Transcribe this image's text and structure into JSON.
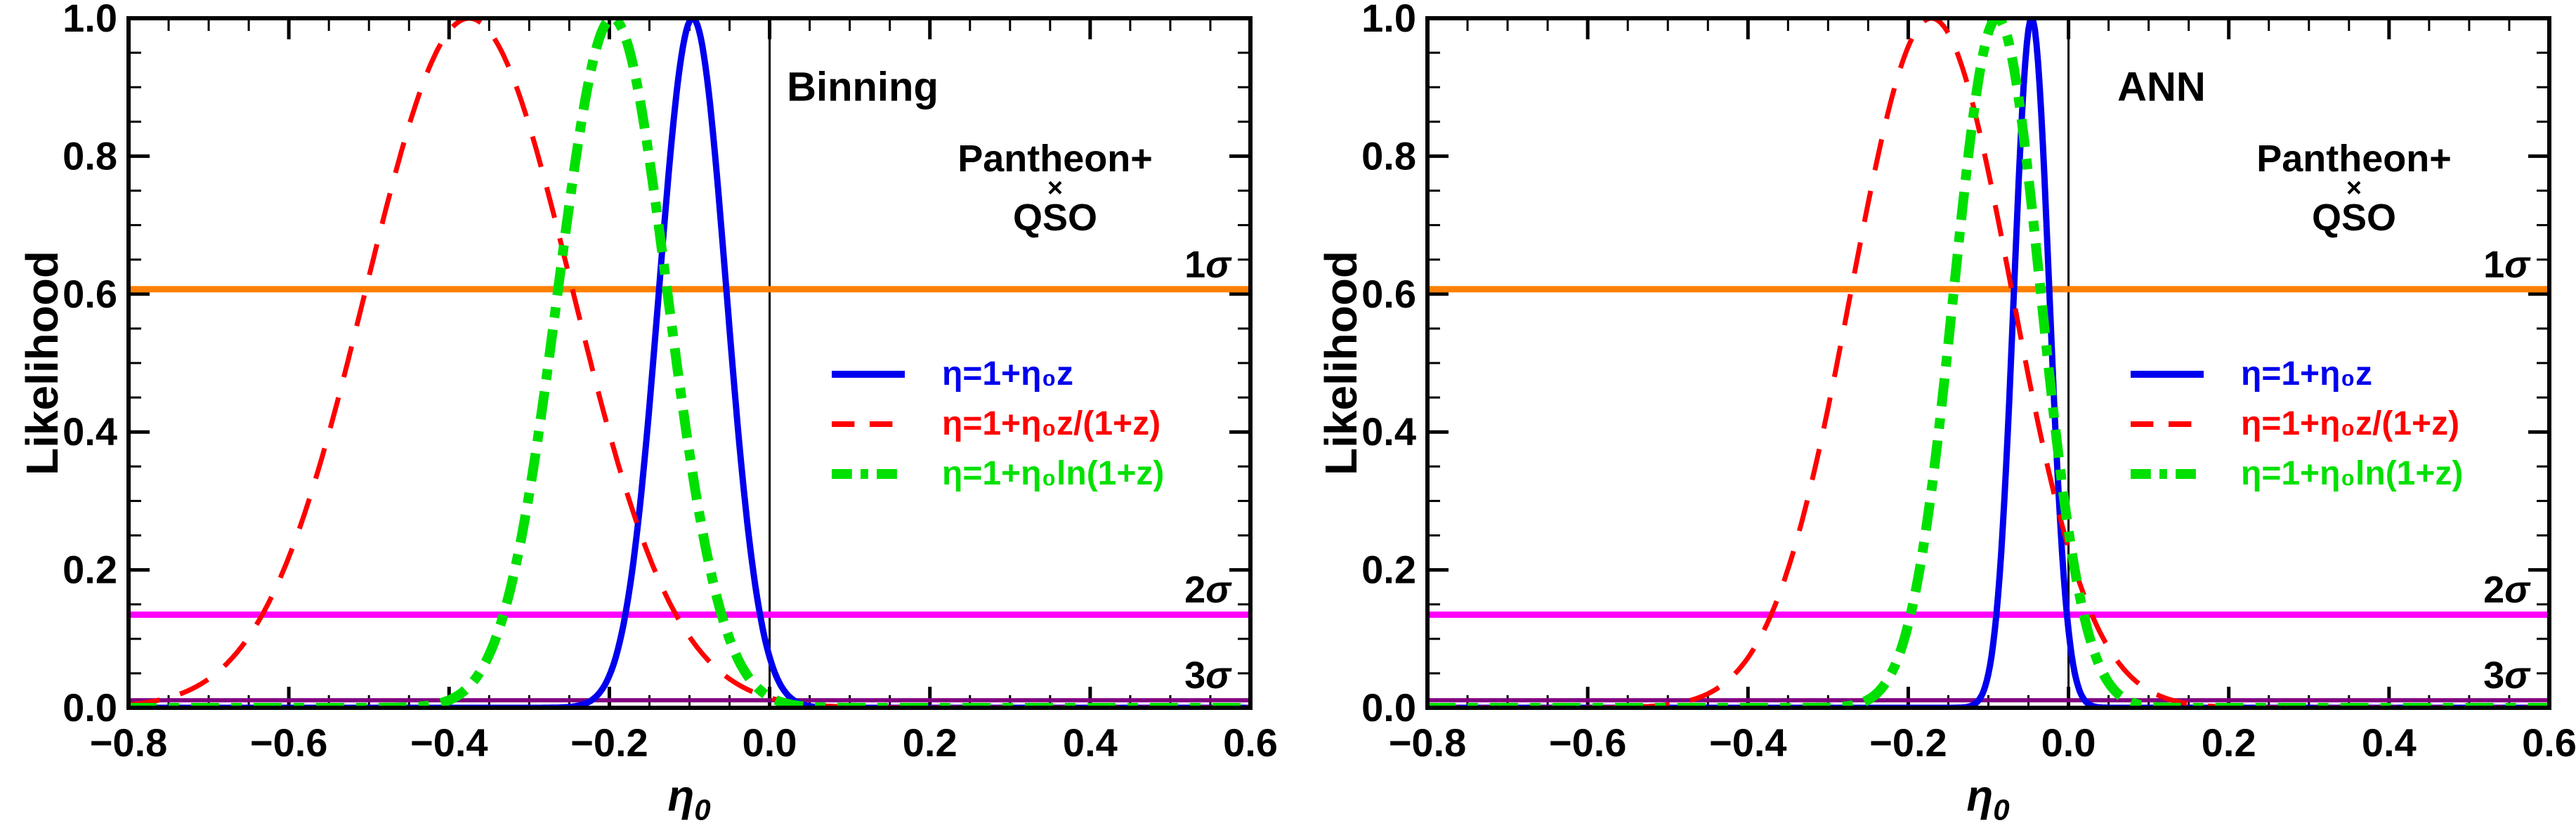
{
  "figure": {
    "background": "#FFFFFF",
    "frame_color": "#000000"
  },
  "chart_data": [
    {
      "type": "line",
      "panel": "left",
      "title": "Binning",
      "dataset": {
        "line1": "Pantheon+",
        "times": "×",
        "line2": "QSO"
      },
      "xlabel": {
        "symbol": "η",
        "sub": "0"
      },
      "ylabel": "Likelihood",
      "xlim": [
        -0.8,
        0.6
      ],
      "ylim": [
        0,
        1
      ],
      "grid": false,
      "legend_position": "center-right",
      "xticks": {
        "major": [
          -0.8,
          -0.6,
          -0.4,
          -0.2,
          0,
          0.2,
          0.4,
          0.6
        ],
        "labels": [
          "−0.8",
          "−0.6",
          "−0.4",
          "−0.2",
          "0.0",
          "0.2",
          "0.4",
          "0.6"
        ],
        "minor_step": 0.05
      },
      "yticks": {
        "major": [
          0,
          0.2,
          0.4,
          0.6,
          0.8,
          1
        ],
        "labels": [
          "0.0",
          "0.2",
          "0.4",
          "0.6",
          "0.8",
          "1.0"
        ],
        "minor_step": 0.05
      },
      "series": [
        {
          "name": "η=1+η₀z",
          "color": "#0000EE",
          "style": "solid",
          "width": 9,
          "dash": null,
          "shape": "gaussian",
          "mu": -0.096,
          "sigma": 0.042,
          "peak": 1.0
        },
        {
          "name": "η=1+η₀z/(1+z)",
          "color": "#FF0000",
          "style": "dashed",
          "width": 7,
          "dash": [
            45,
            30
          ],
          "shape": "gaussian",
          "mu": -0.375,
          "sigma": 0.129,
          "peak": 1.0
        },
        {
          "name": "η=1+η₀ln(1+z)",
          "color": "#00E000",
          "style": "dash-dotted",
          "width": 14,
          "dash": [
            40,
            17,
            15,
            17
          ],
          "shape": "gaussian",
          "mu": -0.196,
          "sigma": 0.068,
          "peak": 1.0
        }
      ],
      "hlines": [
        {
          "label": {
            "prefix": "1",
            "symbol": "σ"
          },
          "value": 0.607,
          "color": "#FF8000",
          "width": 9
        },
        {
          "label": {
            "prefix": "2",
            "symbol": "σ"
          },
          "value": 0.135,
          "color": "#FF00FF",
          "width": 9
        },
        {
          "label": {
            "prefix": "3",
            "symbol": "σ"
          },
          "value": 0.011,
          "color": "#800080",
          "width": 6
        }
      ],
      "vlines": [
        {
          "value": 0,
          "color": "#000000",
          "width": 3
        }
      ]
    },
    {
      "type": "line",
      "panel": "right",
      "title": "ANN",
      "dataset": {
        "line1": "Pantheon+",
        "times": "×",
        "line2": "QSO"
      },
      "xlabel": {
        "symbol": "η",
        "sub": "0"
      },
      "ylabel": "Likelihood",
      "xlim": [
        -0.8,
        0.6
      ],
      "ylim": [
        0,
        1
      ],
      "grid": false,
      "legend_position": "center-right",
      "xticks": {
        "major": [
          -0.8,
          -0.6,
          -0.4,
          -0.2,
          0,
          0.2,
          0.4,
          0.6
        ],
        "labels": [
          "−0.8",
          "−0.6",
          "−0.4",
          "−0.2",
          "0.0",
          "0.2",
          "0.4",
          "0.6"
        ],
        "minor_step": 0.05
      },
      "yticks": {
        "major": [
          0,
          0.2,
          0.4,
          0.6,
          0.8,
          1
        ],
        "labels": [
          "0.0",
          "0.2",
          "0.4",
          "0.6",
          "0.8",
          "1.0"
        ],
        "minor_step": 0.05
      },
      "series": [
        {
          "name": "η=1+η₀z",
          "color": "#0000EE",
          "style": "solid",
          "width": 9,
          "dash": null,
          "shape": "gaussian",
          "mu": -0.046,
          "sigma": 0.022,
          "peak": 1.0
        },
        {
          "name": "η=1+η₀z/(1+z)",
          "color": "#FF0000",
          "style": "dashed",
          "width": 7,
          "dash": [
            45,
            30
          ],
          "shape": "gaussian",
          "mu": -0.171,
          "sigma": 0.1,
          "peak": 1.0
        },
        {
          "name": "η=1+η₀ln(1+z)",
          "color": "#00E000",
          "style": "dash-dotted",
          "width": 14,
          "dash": [
            40,
            17,
            15,
            17
          ],
          "shape": "gaussian",
          "mu": -0.089,
          "sigma": 0.054,
          "peak": 1.0
        }
      ],
      "hlines": [
        {
          "label": {
            "prefix": "1",
            "symbol": "σ"
          },
          "value": 0.607,
          "color": "#FF8000",
          "width": 9
        },
        {
          "label": {
            "prefix": "2",
            "symbol": "σ"
          },
          "value": 0.135,
          "color": "#FF00FF",
          "width": 9
        },
        {
          "label": {
            "prefix": "3",
            "symbol": "σ"
          },
          "value": 0.011,
          "color": "#800080",
          "width": 6
        }
      ],
      "vlines": [
        {
          "value": 0,
          "color": "#000000",
          "width": 3
        }
      ]
    }
  ]
}
